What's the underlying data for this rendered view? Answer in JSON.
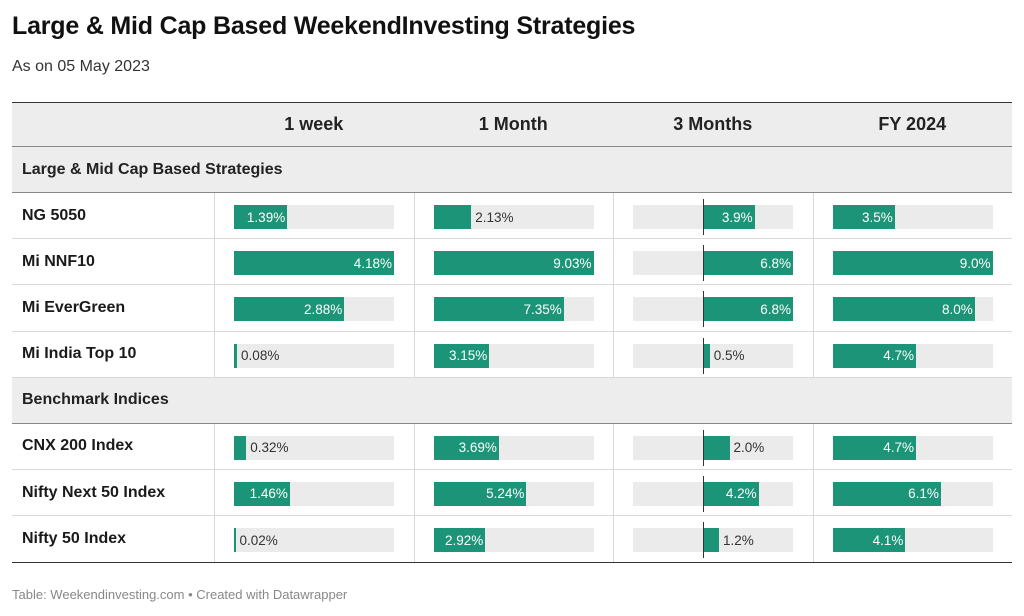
{
  "title": "Large & Mid Cap Based WeekendInvesting Strategies",
  "subtitle": "As on 05 May 2023",
  "footer": "Table: Weekendinvesting.com • Created with Datawrapper",
  "colors": {
    "bar": "#1c9477",
    "track": "#ebebeb",
    "group_bg": "#ededed"
  },
  "chart_data": {
    "type": "table",
    "columns": [
      "",
      "1 week",
      "1 Month",
      "3 Months",
      "FY 2024"
    ],
    "column_ranges": [
      [
        0,
        4.18
      ],
      [
        0,
        9.03
      ],
      [
        -5.3,
        6.8
      ],
      [
        0,
        9.0
      ]
    ],
    "groups": [
      {
        "name": "Large & Mid Cap Based Strategies",
        "rows": [
          {
            "name": "NG 5050",
            "values": [
              1.39,
              2.13,
              3.9,
              3.5
            ],
            "labels": [
              "1.39%",
              "2.13%",
              "3.9%",
              "3.5%"
            ]
          },
          {
            "name": "Mi NNF10",
            "values": [
              4.18,
              9.03,
              6.8,
              9.0
            ],
            "labels": [
              "4.18%",
              "9.03%",
              "6.8%",
              "9.0%"
            ]
          },
          {
            "name": "Mi EverGreen",
            "values": [
              2.88,
              7.35,
              6.8,
              8.0
            ],
            "labels": [
              "2.88%",
              "7.35%",
              "6.8%",
              "8.0%"
            ]
          },
          {
            "name": "Mi India Top 10",
            "values": [
              0.08,
              3.15,
              0.5,
              4.7
            ],
            "labels": [
              "0.08%",
              "3.15%",
              "0.5%",
              "4.7%"
            ]
          }
        ]
      },
      {
        "name": "Benchmark Indices",
        "rows": [
          {
            "name": "CNX 200 Index",
            "values": [
              0.32,
              3.69,
              2.0,
              4.7
            ],
            "labels": [
              "0.32%",
              "3.69%",
              "2.0%",
              "4.7%"
            ]
          },
          {
            "name": "Nifty Next 50 Index",
            "values": [
              1.46,
              5.24,
              4.2,
              6.1
            ],
            "labels": [
              "1.46%",
              "5.24%",
              "4.2%",
              "6.1%"
            ]
          },
          {
            "name": "Nifty 50 Index",
            "values": [
              0.02,
              2.92,
              1.2,
              4.1
            ],
            "labels": [
              "0.02%",
              "2.92%",
              "1.2%",
              "4.1%"
            ]
          }
        ]
      }
    ]
  }
}
